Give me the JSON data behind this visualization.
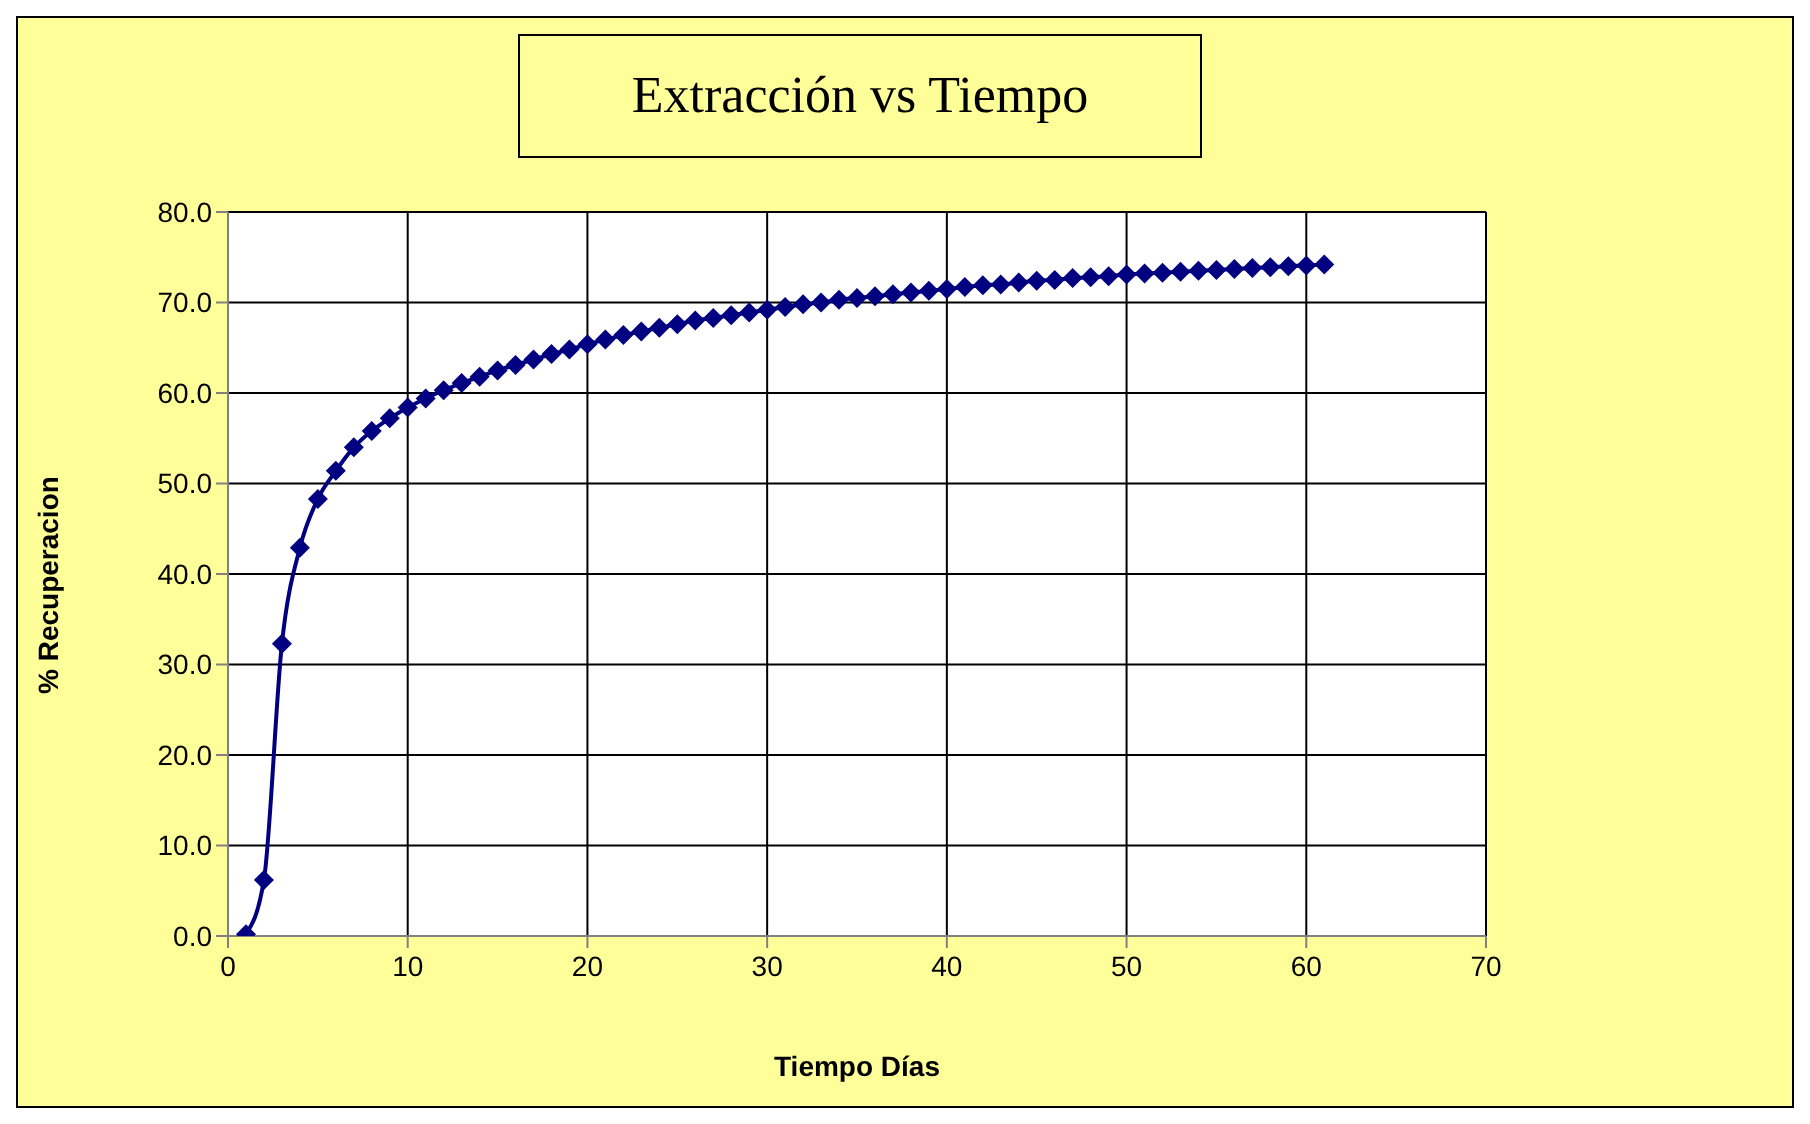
{
  "chart_data": {
    "type": "line",
    "title": "Extracción vs Tiempo",
    "xlabel": "Tiempo Días",
    "ylabel": "% Recuperacion",
    "x": [
      1,
      2,
      3,
      4,
      5,
      6,
      7,
      8,
      9,
      10,
      11,
      12,
      13,
      14,
      15,
      16,
      17,
      18,
      19,
      20,
      21,
      22,
      23,
      24,
      25,
      26,
      27,
      28,
      29,
      30,
      31,
      32,
      33,
      34,
      35,
      36,
      37,
      38,
      39,
      40,
      41,
      42,
      43,
      44,
      45,
      46,
      47,
      48,
      49,
      50,
      51,
      52,
      53,
      54,
      55,
      56,
      57,
      58,
      59,
      60,
      61
    ],
    "series": [
      {
        "color": "#000080",
        "values": [
          0.2,
          6.2,
          32.3,
          42.9,
          48.3,
          51.4,
          54.0,
          55.8,
          57.2,
          58.4,
          59.4,
          60.3,
          61.1,
          61.8,
          62.5,
          63.1,
          63.7,
          64.3,
          64.8,
          65.4,
          65.9,
          66.4,
          66.8,
          67.2,
          67.6,
          68.0,
          68.3,
          68.6,
          68.9,
          69.2,
          69.5,
          69.8,
          70.0,
          70.3,
          70.5,
          70.7,
          70.9,
          71.1,
          71.3,
          71.5,
          71.7,
          71.9,
          72.0,
          72.2,
          72.4,
          72.5,
          72.7,
          72.8,
          72.9,
          73.1,
          73.2,
          73.3,
          73.4,
          73.5,
          73.6,
          73.7,
          73.8,
          73.9,
          74.0,
          74.1,
          74.2
        ]
      }
    ],
    "xlim": [
      0,
      70
    ],
    "xticks": [
      0,
      10,
      20,
      30,
      40,
      50,
      60,
      70
    ],
    "ylim": [
      0,
      80
    ],
    "yticks": [
      {
        "value": 0,
        "label": "0.0"
      },
      {
        "value": 10,
        "label": "10.0"
      },
      {
        "value": 20,
        "label": "20.0"
      },
      {
        "value": 30,
        "label": "30.0"
      },
      {
        "value": 40,
        "label": "40.0"
      },
      {
        "value": 50,
        "label": "50.0"
      },
      {
        "value": 60,
        "label": "60.0"
      },
      {
        "value": 70,
        "label": "70.0"
      },
      {
        "value": 80,
        "label": "80.0"
      }
    ],
    "grid": true,
    "legend": false,
    "marker": "diamond",
    "line_style": "solid"
  }
}
